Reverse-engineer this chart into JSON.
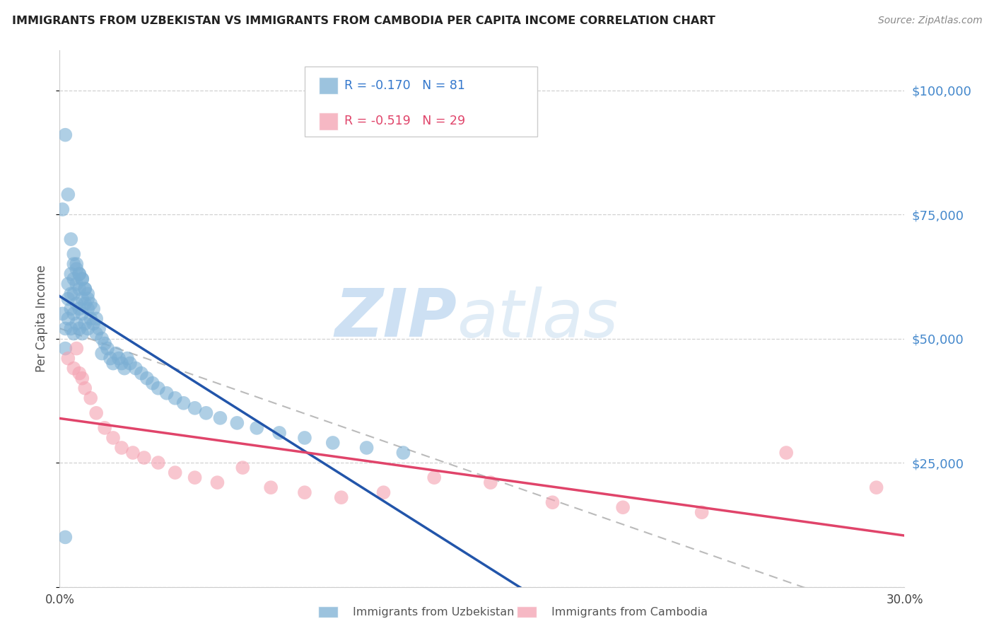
{
  "title": "IMMIGRANTS FROM UZBEKISTAN VS IMMIGRANTS FROM CAMBODIA PER CAPITA INCOME CORRELATION CHART",
  "source": "Source: ZipAtlas.com",
  "ylabel": "Per Capita Income",
  "yticks": [
    0,
    25000,
    50000,
    75000,
    100000
  ],
  "ytick_labels": [
    "",
    "$25,000",
    "$50,000",
    "$75,000",
    "$100,000"
  ],
  "xlim": [
    0.0,
    0.3
  ],
  "ylim": [
    0,
    108000
  ],
  "uzbekistan_color": "#7bafd4",
  "cambodia_color": "#f4a0b0",
  "uzbekistan_line_color": "#2255aa",
  "cambodia_line_color": "#e0446a",
  "dashed_line_color": "#aaaaaa",
  "uzbekistan_R": -0.17,
  "uzbekistan_N": 81,
  "cambodia_R": -0.519,
  "cambodia_N": 29,
  "legend_label_uzbekistan": "Immigrants from Uzbekistan",
  "legend_label_cambodia": "Immigrants from Cambodia",
  "watermark_zip": "ZIP",
  "watermark_atlas": "atlas",
  "background_color": "#ffffff",
  "grid_color": "#cccccc",
  "uzbekistan_x": [
    0.001,
    0.002,
    0.002,
    0.003,
    0.003,
    0.003,
    0.004,
    0.004,
    0.004,
    0.004,
    0.005,
    0.005,
    0.005,
    0.005,
    0.005,
    0.006,
    0.006,
    0.006,
    0.006,
    0.007,
    0.007,
    0.007,
    0.007,
    0.008,
    0.008,
    0.008,
    0.008,
    0.009,
    0.009,
    0.009,
    0.01,
    0.01,
    0.01,
    0.011,
    0.011,
    0.012,
    0.012,
    0.013,
    0.013,
    0.014,
    0.015,
    0.015,
    0.016,
    0.017,
    0.018,
    0.019,
    0.02,
    0.021,
    0.022,
    0.023,
    0.024,
    0.025,
    0.027,
    0.029,
    0.031,
    0.033,
    0.035,
    0.038,
    0.041,
    0.044,
    0.048,
    0.052,
    0.057,
    0.063,
    0.07,
    0.078,
    0.087,
    0.097,
    0.109,
    0.122,
    0.001,
    0.002,
    0.003,
    0.004,
    0.005,
    0.006,
    0.007,
    0.008,
    0.009,
    0.01,
    0.002
  ],
  "uzbekistan_y": [
    55000,
    52000,
    48000,
    61000,
    58000,
    54000,
    63000,
    59000,
    56000,
    52000,
    65000,
    62000,
    59000,
    55000,
    51000,
    64000,
    61000,
    57000,
    53000,
    63000,
    60000,
    56000,
    52000,
    62000,
    58000,
    55000,
    51000,
    60000,
    57000,
    53000,
    59000,
    56000,
    52000,
    57000,
    54000,
    56000,
    53000,
    54000,
    51000,
    52000,
    50000,
    47000,
    49000,
    48000,
    46000,
    45000,
    47000,
    46000,
    45000,
    44000,
    46000,
    45000,
    44000,
    43000,
    42000,
    41000,
    40000,
    39000,
    38000,
    37000,
    36000,
    35000,
    34000,
    33000,
    32000,
    31000,
    30000,
    29000,
    28000,
    27000,
    76000,
    91000,
    79000,
    70000,
    67000,
    65000,
    63000,
    62000,
    60000,
    58000,
    10000
  ],
  "cambodia_x": [
    0.003,
    0.005,
    0.006,
    0.007,
    0.008,
    0.009,
    0.011,
    0.013,
    0.016,
    0.019,
    0.022,
    0.026,
    0.03,
    0.035,
    0.041,
    0.048,
    0.056,
    0.065,
    0.075,
    0.087,
    0.1,
    0.115,
    0.133,
    0.153,
    0.175,
    0.2,
    0.228,
    0.258,
    0.29
  ],
  "cambodia_y": [
    46000,
    44000,
    48000,
    43000,
    42000,
    40000,
    38000,
    35000,
    32000,
    30000,
    28000,
    27000,
    26000,
    25000,
    23000,
    22000,
    21000,
    24000,
    20000,
    19000,
    18000,
    19000,
    22000,
    21000,
    17000,
    16000,
    15000,
    27000,
    20000
  ]
}
